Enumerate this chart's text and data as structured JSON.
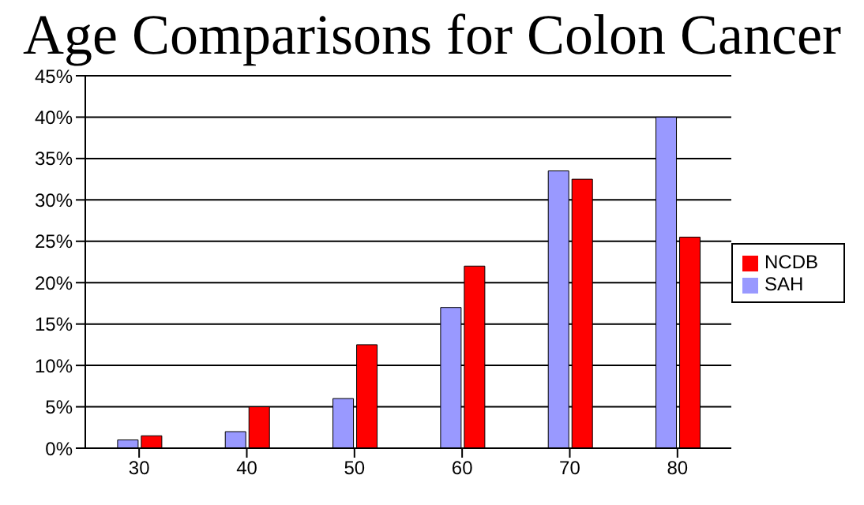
{
  "chart_data": {
    "type": "bar",
    "title": "Age Comparisons for Colon Cancer",
    "categories": [
      "30",
      "40",
      "50",
      "60",
      "70",
      "80"
    ],
    "series": [
      {
        "name": "SAH",
        "color": "#9999ff",
        "values": [
          1,
          2,
          6,
          17,
          33.5,
          40
        ]
      },
      {
        "name": "NCDB",
        "color": "#ff0000",
        "values": [
          1.5,
          5,
          12.5,
          22,
          32.5,
          25.5
        ]
      }
    ],
    "ylim": [
      0,
      45
    ],
    "yticks": [
      {
        "value": 0,
        "label": "0%"
      },
      {
        "value": 5,
        "label": "5%"
      },
      {
        "value": 10,
        "label": "10%"
      },
      {
        "value": 15,
        "label": "15%"
      },
      {
        "value": 20,
        "label": "20%"
      },
      {
        "value": 25,
        "label": "25%"
      },
      {
        "value": 30,
        "label": "30%"
      },
      {
        "value": 35,
        "label": "35%"
      },
      {
        "value": 40,
        "label": "40%"
      },
      {
        "value": 45,
        "label": "45%"
      }
    ],
    "grid": "y",
    "legend": "right"
  }
}
